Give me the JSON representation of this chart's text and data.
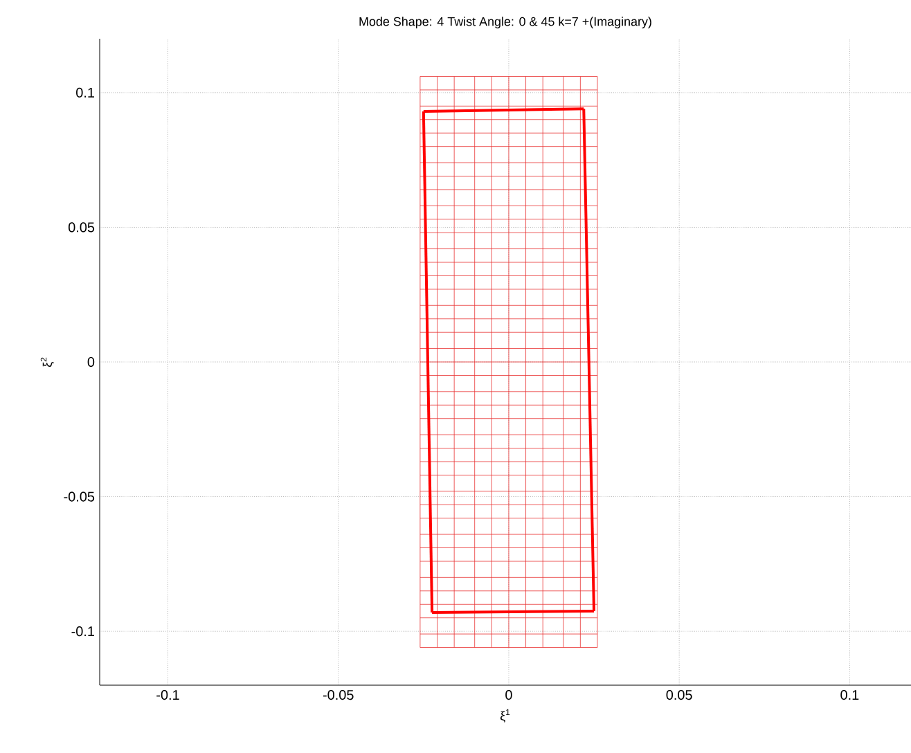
{
  "chart_data": {
    "type": "line",
    "title": "Mode Shape: 4 Twist Angle: 0 & 45 k=7 +(Imaginary)",
    "xlabel": "ξ$^{1}$",
    "ylabel": "ξ$^{2}$",
    "xlim": [
      -0.12,
      0.118
    ],
    "ylim": [
      -0.12,
      0.12
    ],
    "xticks": [
      -0.1,
      -0.05,
      0,
      0.05,
      0.1
    ],
    "yticks": [
      -0.1,
      -0.05,
      0,
      0.05,
      0.1
    ],
    "grid": true,
    "marker": "none",
    "line_style": "solid",
    "series": [
      {
        "color": "#e83030",
        "x": [
          -0.026,
          -0.026
        ],
        "values": [
          -0.106,
          0.106
        ]
      },
      {
        "color": "#e83030",
        "x": [
          -0.021,
          -0.021
        ],
        "values": [
          -0.106,
          0.106
        ]
      },
      {
        "color": "#e83030",
        "x": [
          -0.016,
          -0.016
        ],
        "values": [
          -0.106,
          0.106
        ]
      },
      {
        "color": "#e83030",
        "x": [
          -0.01,
          -0.01
        ],
        "values": [
          -0.106,
          0.106
        ]
      },
      {
        "color": "#e83030",
        "x": [
          -0.005,
          -0.005
        ],
        "values": [
          -0.106,
          0.106
        ]
      },
      {
        "color": "#e83030",
        "x": [
          0,
          0
        ],
        "values": [
          -0.106,
          0.106
        ]
      },
      {
        "color": "#e83030",
        "x": [
          0.005,
          0.005
        ],
        "values": [
          -0.106,
          0.106
        ]
      },
      {
        "color": "#e83030",
        "x": [
          0.01,
          0.01
        ],
        "values": [
          -0.106,
          0.106
        ]
      },
      {
        "color": "#e83030",
        "x": [
          0.016,
          0.016
        ],
        "values": [
          -0.106,
          0.106
        ]
      },
      {
        "color": "#e83030",
        "x": [
          0.021,
          0.021
        ],
        "values": [
          -0.106,
          0.106
        ]
      },
      {
        "color": "#e83030",
        "x": [
          0.026,
          0.026
        ],
        "values": [
          -0.106,
          0.106
        ]
      },
      {
        "color": "#e83030",
        "x": [
          -0.026,
          0.026
        ],
        "values": [
          -0.106,
          -0.106
        ]
      },
      {
        "color": "#e83030",
        "x": [
          -0.026,
          0.026
        ],
        "values": [
          -0.101,
          -0.101
        ]
      },
      {
        "color": "#e83030",
        "x": [
          -0.026,
          0.026
        ],
        "values": [
          -0.095,
          -0.095
        ]
      },
      {
        "color": "#e83030",
        "x": [
          -0.026,
          0.026
        ],
        "values": [
          -0.09,
          -0.09
        ]
      },
      {
        "color": "#e83030",
        "x": [
          -0.026,
          0.026
        ],
        "values": [
          -0.085,
          -0.085
        ]
      },
      {
        "color": "#e83030",
        "x": [
          -0.026,
          0.026
        ],
        "values": [
          -0.08,
          -0.08
        ]
      },
      {
        "color": "#e83030",
        "x": [
          -0.026,
          0.026
        ],
        "values": [
          -0.074,
          -0.074
        ]
      },
      {
        "color": "#e83030",
        "x": [
          -0.026,
          0.026
        ],
        "values": [
          -0.069,
          -0.069
        ]
      },
      {
        "color": "#e83030",
        "x": [
          -0.026,
          0.026
        ],
        "values": [
          -0.064,
          -0.064
        ]
      },
      {
        "color": "#e83030",
        "x": [
          -0.026,
          0.026
        ],
        "values": [
          -0.058,
          -0.058
        ]
      },
      {
        "color": "#e83030",
        "x": [
          -0.026,
          0.026
        ],
        "values": [
          -0.053,
          -0.053
        ]
      },
      {
        "color": "#e83030",
        "x": [
          -0.026,
          0.026
        ],
        "values": [
          -0.048,
          -0.048
        ]
      },
      {
        "color": "#e83030",
        "x": [
          -0.026,
          0.026
        ],
        "values": [
          -0.042,
          -0.042
        ]
      },
      {
        "color": "#e83030",
        "x": [
          -0.026,
          0.026
        ],
        "values": [
          -0.037,
          -0.037
        ]
      },
      {
        "color": "#e83030",
        "x": [
          -0.026,
          0.026
        ],
        "values": [
          -0.032,
          -0.032
        ]
      },
      {
        "color": "#e83030",
        "x": [
          -0.026,
          0.026
        ],
        "values": [
          -0.027,
          -0.027
        ]
      },
      {
        "color": "#e83030",
        "x": [
          -0.026,
          0.026
        ],
        "values": [
          -0.021,
          -0.021
        ]
      },
      {
        "color": "#e83030",
        "x": [
          -0.026,
          0.026
        ],
        "values": [
          -0.016,
          -0.016
        ]
      },
      {
        "color": "#e83030",
        "x": [
          -0.026,
          0.026
        ],
        "values": [
          -0.011,
          -0.011
        ]
      },
      {
        "color": "#e83030",
        "x": [
          -0.026,
          0.026
        ],
        "values": [
          -0.005,
          -0.005
        ]
      },
      {
        "color": "#e83030",
        "x": [
          -0.026,
          0.026
        ],
        "values": [
          0,
          0
        ]
      },
      {
        "color": "#e83030",
        "x": [
          -0.026,
          0.026
        ],
        "values": [
          0.005,
          0.005
        ]
      },
      {
        "color": "#e83030",
        "x": [
          -0.026,
          0.026
        ],
        "values": [
          0.011,
          0.011
        ]
      },
      {
        "color": "#e83030",
        "x": [
          -0.026,
          0.026
        ],
        "values": [
          0.016,
          0.016
        ]
      },
      {
        "color": "#e83030",
        "x": [
          -0.026,
          0.026
        ],
        "values": [
          0.021,
          0.021
        ]
      },
      {
        "color": "#e83030",
        "x": [
          -0.026,
          0.026
        ],
        "values": [
          0.027,
          0.027
        ]
      },
      {
        "color": "#e83030",
        "x": [
          -0.026,
          0.026
        ],
        "values": [
          0.032,
          0.032
        ]
      },
      {
        "color": "#e83030",
        "x": [
          -0.026,
          0.026
        ],
        "values": [
          0.037,
          0.037
        ]
      },
      {
        "color": "#e83030",
        "x": [
          -0.026,
          0.026
        ],
        "values": [
          0.042,
          0.042
        ]
      },
      {
        "color": "#e83030",
        "x": [
          -0.026,
          0.026
        ],
        "values": [
          0.048,
          0.048
        ]
      },
      {
        "color": "#e83030",
        "x": [
          -0.026,
          0.026
        ],
        "values": [
          0.053,
          0.053
        ]
      },
      {
        "color": "#e83030",
        "x": [
          -0.026,
          0.026
        ],
        "values": [
          0.058,
          0.058
        ]
      },
      {
        "color": "#e83030",
        "x": [
          -0.026,
          0.026
        ],
        "values": [
          0.064,
          0.064
        ]
      },
      {
        "color": "#e83030",
        "x": [
          -0.026,
          0.026
        ],
        "values": [
          0.069,
          0.069
        ]
      },
      {
        "color": "#e83030",
        "x": [
          -0.026,
          0.026
        ],
        "values": [
          0.074,
          0.074
        ]
      },
      {
        "color": "#e83030",
        "x": [
          -0.026,
          0.026
        ],
        "values": [
          0.08,
          0.08
        ]
      },
      {
        "color": "#e83030",
        "x": [
          -0.026,
          0.026
        ],
        "values": [
          0.085,
          0.085
        ]
      },
      {
        "color": "#e83030",
        "x": [
          -0.026,
          0.026
        ],
        "values": [
          0.09,
          0.09
        ]
      },
      {
        "color": "#e83030",
        "x": [
          -0.026,
          0.026
        ],
        "values": [
          0.095,
          0.095
        ]
      },
      {
        "color": "#e83030",
        "x": [
          -0.026,
          0.026
        ],
        "values": [
          0.101,
          0.101
        ]
      },
      {
        "color": "#e83030",
        "x": [
          -0.026,
          0.026
        ],
        "values": [
          0.106,
          0.106
        ]
      },
      {
        "color": "#ff0000",
        "x": [
          -0.025,
          0.022
        ],
        "values": [
          0.093,
          0.094
        ]
      },
      {
        "color": "#ff0000",
        "x": [
          0.022,
          0.025
        ],
        "values": [
          0.094,
          -0.0925
        ]
      },
      {
        "color": "#ff0000",
        "x": [
          -0.0225,
          0.025
        ],
        "values": [
          -0.093,
          -0.0925
        ]
      },
      {
        "color": "#ff0000",
        "x": [
          -0.025,
          -0.0225
        ],
        "values": [
          0.093,
          -0.093
        ]
      }
    ]
  }
}
